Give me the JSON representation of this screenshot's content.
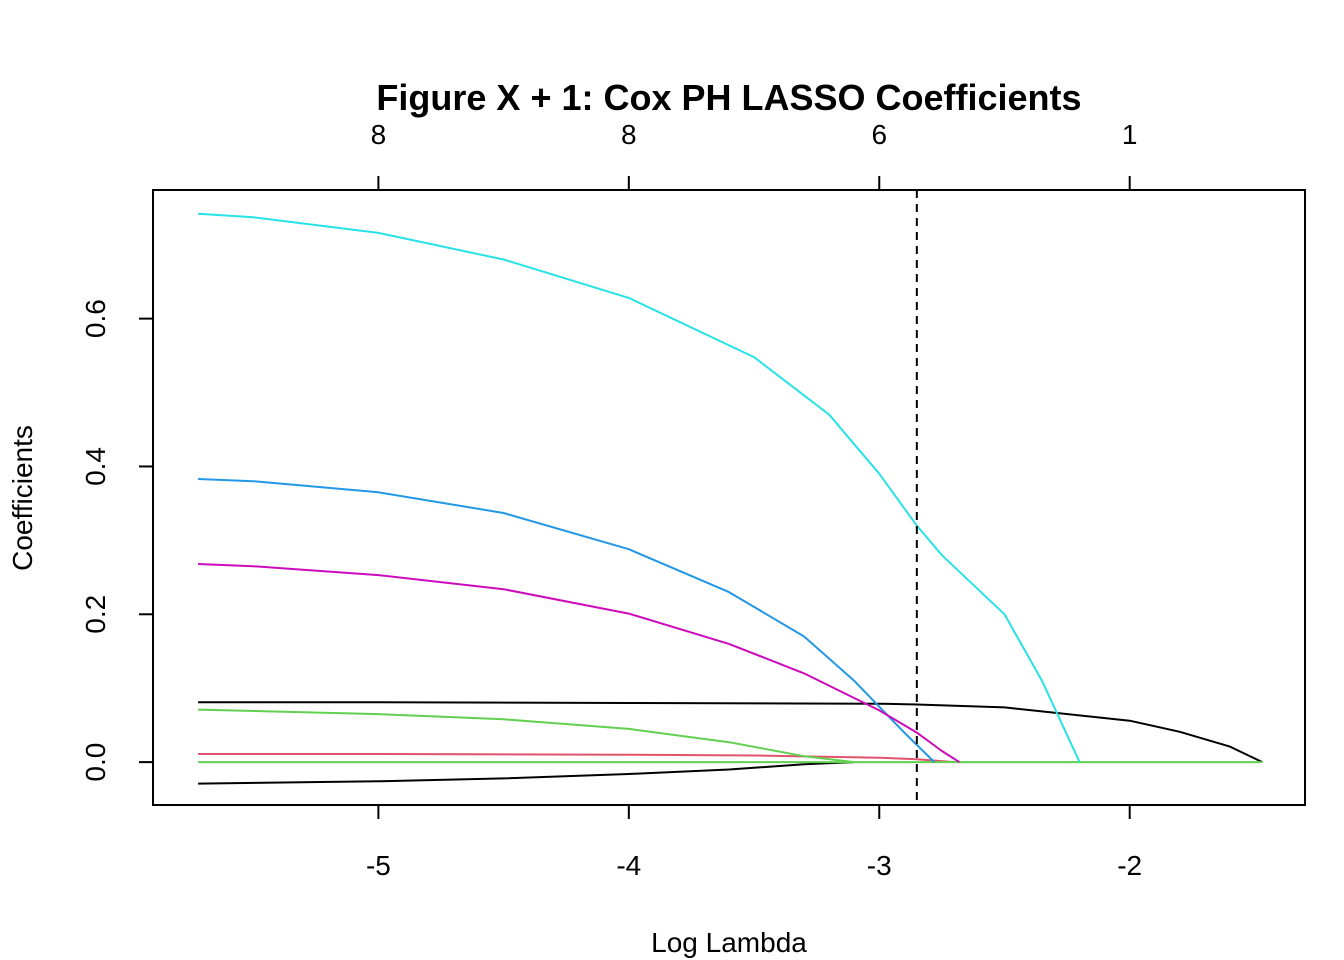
{
  "chart_data": {
    "type": "line",
    "title": "Figure X + 1: Cox PH LASSO Coefficients",
    "xlabel": "Log Lambda",
    "ylabel": "Coefficients",
    "xlim": [
      -5.9,
      -1.3
    ],
    "ylim": [
      -0.058,
      0.774
    ],
    "x_ticks": [
      -5,
      -4,
      -3,
      -2
    ],
    "x_tick_labels": [
      "-5",
      "-4",
      "-3",
      "-2"
    ],
    "y_ticks": [
      0.0,
      0.2,
      0.4,
      0.6
    ],
    "y_tick_labels": [
      "0.0",
      "0.2",
      "0.4",
      "0.6"
    ],
    "top_axis": {
      "ticks": [
        -5,
        -4,
        -3,
        -2
      ],
      "labels": [
        "8",
        "8",
        "6",
        "1"
      ]
    },
    "reference_line": {
      "x": -2.85,
      "style": "dashed",
      "color": "#000000"
    },
    "grid": false,
    "legend": "none",
    "series": [
      {
        "color": "#000000",
        "x": [
          -5.72,
          -5.0,
          -4.0,
          -3.0,
          -2.85,
          -2.5,
          -2.0,
          -1.8,
          -1.6,
          -1.47
        ],
        "values": [
          0.081,
          0.081,
          0.08,
          0.079,
          0.078,
          0.074,
          0.056,
          0.041,
          0.021,
          0.0
        ]
      },
      {
        "color": "#000000",
        "x": [
          -5.72,
          -5.0,
          -4.5,
          -4.0,
          -3.6,
          -3.3,
          -3.1
        ],
        "values": [
          -0.029,
          -0.026,
          -0.022,
          -0.016,
          -0.01,
          -0.003,
          0.0
        ]
      },
      {
        "color": "#DF536B",
        "x": [
          -5.72,
          -5.0,
          -4.0,
          -3.5,
          -3.0,
          -2.85,
          -2.7
        ],
        "values": [
          0.011,
          0.011,
          0.01,
          0.009,
          0.006,
          0.004,
          0.0
        ]
      },
      {
        "color": "#61D04F",
        "x": [
          -5.72,
          -5.0,
          -4.5,
          -4.0,
          -3.6,
          -3.3,
          -3.1
        ],
        "values": [
          0.071,
          0.065,
          0.058,
          0.045,
          0.027,
          0.008,
          0.0
        ]
      },
      {
        "color": "#61D04F",
        "x": [
          -5.72,
          -4.0,
          -2.6,
          -1.47
        ],
        "values": [
          0.0,
          0.0,
          0.0,
          0.0
        ]
      },
      {
        "color": "#2297E6",
        "x": [
          -5.72,
          -5.5,
          -5.0,
          -4.5,
          -4.0,
          -3.6,
          -3.3,
          -3.1,
          -2.9,
          -2.78
        ],
        "values": [
          0.383,
          0.38,
          0.365,
          0.337,
          0.288,
          0.23,
          0.17,
          0.11,
          0.04,
          0.0
        ]
      },
      {
        "color": "#28E2E5",
        "x": [
          -5.72,
          -5.5,
          -5.0,
          -4.5,
          -4.0,
          -3.5,
          -3.2,
          -3.0,
          -2.85,
          -2.75,
          -2.5,
          -2.35,
          -2.2
        ],
        "values": [
          0.742,
          0.737,
          0.716,
          0.68,
          0.628,
          0.548,
          0.47,
          0.39,
          0.32,
          0.28,
          0.2,
          0.11,
          0.0
        ]
      },
      {
        "color": "#CD0BBC",
        "x": [
          -5.72,
          -5.5,
          -5.0,
          -4.5,
          -4.0,
          -3.6,
          -3.3,
          -3.0,
          -2.85,
          -2.75,
          -2.68
        ],
        "values": [
          0.268,
          0.265,
          0.253,
          0.234,
          0.201,
          0.16,
          0.12,
          0.07,
          0.04,
          0.015,
          0.0
        ]
      }
    ]
  }
}
